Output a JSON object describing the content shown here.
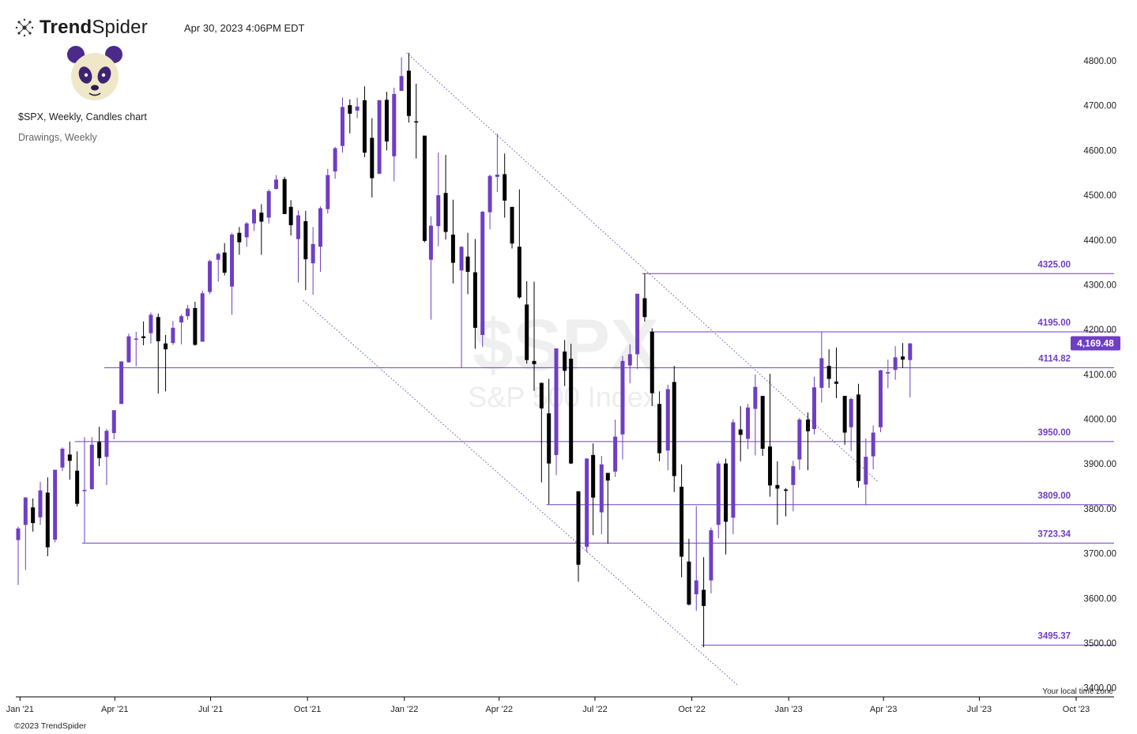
{
  "header": {
    "brand_bold": "Trend",
    "brand_light": "Spider",
    "timestamp": "Apr 30, 2023 4:06PM EDT",
    "chart_symbol": "$SPX, Weekly, Candles chart",
    "drawings_label": "Drawings, Weekly"
  },
  "footer": {
    "copyright": "©2023 TrendSpider",
    "timezone_label": "Your local time zone"
  },
  "watermark": {
    "symbol": "$SPX",
    "name": "S&P 500 Index"
  },
  "colors": {
    "bull": "#6f3ec4",
    "bear": "#000000",
    "level_line": "#6f3ec4",
    "trendline": "#5b5bb5",
    "axis": "#000000"
  },
  "chart_data": {
    "type": "candlestick",
    "symbol": "$SPX",
    "timeframe": "Weekly",
    "ylim": [
      3380,
      4830
    ],
    "xlim": [
      "2020-12-28",
      "2023-11-06"
    ],
    "y_ticks": [
      3400,
      3500,
      3600,
      3700,
      3800,
      3900,
      4000,
      4100,
      4200,
      4300,
      4400,
      4500,
      4600,
      4700,
      4800
    ],
    "x_ticks": [
      {
        "date": "2021-01-01",
        "label": "Jan '21"
      },
      {
        "date": "2021-04-01",
        "label": "Apr '21"
      },
      {
        "date": "2021-07-01",
        "label": "Jul '21"
      },
      {
        "date": "2021-10-01",
        "label": "Oct '21"
      },
      {
        "date": "2022-01-01",
        "label": "Jan '22"
      },
      {
        "date": "2022-04-01",
        "label": "Apr '22"
      },
      {
        "date": "2022-07-01",
        "label": "Jul '22"
      },
      {
        "date": "2022-10-01",
        "label": "Oct '22"
      },
      {
        "date": "2023-01-01",
        "label": "Jan '23"
      },
      {
        "date": "2023-04-01",
        "label": "Apr '23"
      },
      {
        "date": "2023-07-01",
        "label": "Jul '23"
      },
      {
        "date": "2023-10-01",
        "label": "Oct '23"
      }
    ],
    "last_price": {
      "value": 4169.48,
      "label": "4,169.48"
    },
    "levels": [
      {
        "value": 4325.0,
        "label": "4325.00",
        "from": "2022-08-15"
      },
      {
        "value": 4195.0,
        "label": "4195.00",
        "from": "2022-08-22"
      },
      {
        "value": 4114.82,
        "label": "4114.82",
        "from": "2021-03-22"
      },
      {
        "value": 3950.0,
        "label": "3950.00",
        "from": "2021-02-22"
      },
      {
        "value": 3809.0,
        "label": "3809.00",
        "from": "2022-05-16"
      },
      {
        "value": 3723.34,
        "label": "3723.34",
        "from": "2021-03-01"
      },
      {
        "value": 3495.37,
        "label": "3495.37",
        "from": "2022-10-10"
      }
    ],
    "trendlines": [
      {
        "x1": "2022-01-03",
        "y1": 4818,
        "x2": "2023-03-27",
        "y2": 3860
      },
      {
        "x1": "2021-09-27",
        "y1": 4265,
        "x2": "2022-11-14",
        "y2": 3405
      }
    ],
    "candles": [
      {
        "d": "2020-12-28",
        "o": 3730,
        "h": 3760,
        "l": 3630,
        "c": 3756
      },
      {
        "d": "2021-01-04",
        "o": 3764,
        "h": 3826,
        "l": 3663,
        "c": 3825
      },
      {
        "d": "2021-01-11",
        "o": 3803,
        "h": 3823,
        "l": 3749,
        "c": 3768
      },
      {
        "d": "2021-01-18",
        "o": 3781,
        "h": 3860,
        "l": 3764,
        "c": 3841
      },
      {
        "d": "2021-01-25",
        "o": 3836,
        "h": 3870,
        "l": 3694,
        "c": 3714
      },
      {
        "d": "2021-02-01",
        "o": 3731,
        "h": 3887,
        "l": 3725,
        "c": 3887
      },
      {
        "d": "2021-02-08",
        "o": 3892,
        "h": 3937,
        "l": 3884,
        "c": 3934
      },
      {
        "d": "2021-02-15",
        "o": 3921,
        "h": 3950,
        "l": 3865,
        "c": 3907
      },
      {
        "d": "2021-02-22",
        "o": 3885,
        "h": 3928,
        "l": 3805,
        "c": 3811
      },
      {
        "d": "2021-03-01",
        "o": 3842,
        "h": 3960,
        "l": 3723,
        "c": 3842
      },
      {
        "d": "2021-03-08",
        "o": 3844,
        "h": 3960,
        "l": 3842,
        "c": 3943
      },
      {
        "d": "2021-03-15",
        "o": 3949,
        "h": 3983,
        "l": 3895,
        "c": 3913
      },
      {
        "d": "2021-03-22",
        "o": 3916,
        "h": 3978,
        "l": 3853,
        "c": 3974
      },
      {
        "d": "2021-03-29",
        "o": 3969,
        "h": 4020,
        "l": 3955,
        "c": 4020
      },
      {
        "d": "2021-04-05",
        "o": 4034,
        "h": 4129,
        "l": 4034,
        "c": 4129
      },
      {
        "d": "2021-04-12",
        "o": 4127,
        "h": 4191,
        "l": 4126,
        "c": 4185
      },
      {
        "d": "2021-04-19",
        "o": 4179,
        "h": 4195,
        "l": 4118,
        "c": 4180
      },
      {
        "d": "2021-04-26",
        "o": 4185,
        "h": 4218,
        "l": 4165,
        "c": 4181
      },
      {
        "d": "2021-05-03",
        "o": 4192,
        "h": 4238,
        "l": 4169,
        "c": 4233
      },
      {
        "d": "2021-05-10",
        "o": 4228,
        "h": 4236,
        "l": 4057,
        "c": 4174
      },
      {
        "d": "2021-05-17",
        "o": 4169,
        "h": 4188,
        "l": 4062,
        "c": 4156
      },
      {
        "d": "2021-05-24",
        "o": 4170,
        "h": 4219,
        "l": 4166,
        "c": 4204
      },
      {
        "d": "2021-06-01",
        "o": 4216,
        "h": 4234,
        "l": 4167,
        "c": 4230
      },
      {
        "d": "2021-06-07",
        "o": 4230,
        "h": 4255,
        "l": 4222,
        "c": 4247
      },
      {
        "d": "2021-06-14",
        "o": 4248,
        "h": 4262,
        "l": 4164,
        "c": 4166
      },
      {
        "d": "2021-06-21",
        "o": 4173,
        "h": 4287,
        "l": 4173,
        "c": 4281
      },
      {
        "d": "2021-06-28",
        "o": 4284,
        "h": 4356,
        "l": 4279,
        "c": 4353
      },
      {
        "d": "2021-07-06",
        "o": 4356,
        "h": 4372,
        "l": 4307,
        "c": 4369
      },
      {
        "d": "2021-07-12",
        "o": 4372,
        "h": 4393,
        "l": 4321,
        "c": 4327
      },
      {
        "d": "2021-07-19",
        "o": 4296,
        "h": 4416,
        "l": 4233,
        "c": 4412
      },
      {
        "d": "2021-07-26",
        "o": 4416,
        "h": 4429,
        "l": 4367,
        "c": 4395
      },
      {
        "d": "2021-08-02",
        "o": 4406,
        "h": 4440,
        "l": 4385,
        "c": 4437
      },
      {
        "d": "2021-08-09",
        "o": 4437,
        "h": 4470,
        "l": 4420,
        "c": 4468
      },
      {
        "d": "2021-08-16",
        "o": 4461,
        "h": 4480,
        "l": 4367,
        "c": 4441
      },
      {
        "d": "2021-08-23",
        "o": 4450,
        "h": 4513,
        "l": 4437,
        "c": 4509
      },
      {
        "d": "2021-08-30",
        "o": 4514,
        "h": 4545,
        "l": 4513,
        "c": 4535
      },
      {
        "d": "2021-09-07",
        "o": 4536,
        "h": 4541,
        "l": 4458,
        "c": 4458
      },
      {
        "d": "2021-09-13",
        "o": 4474,
        "h": 4489,
        "l": 4410,
        "c": 4433
      },
      {
        "d": "2021-09-20",
        "o": 4402,
        "h": 4466,
        "l": 4305,
        "c": 4455
      },
      {
        "d": "2021-09-27",
        "o": 4442,
        "h": 4465,
        "l": 4288,
        "c": 4357
      },
      {
        "d": "2021-10-04",
        "o": 4348,
        "h": 4429,
        "l": 4278,
        "c": 4391
      },
      {
        "d": "2021-10-11",
        "o": 4385,
        "h": 4475,
        "l": 4329,
        "c": 4471
      },
      {
        "d": "2021-10-18",
        "o": 4469,
        "h": 4559,
        "l": 4459,
        "c": 4545
      },
      {
        "d": "2021-10-25",
        "o": 4553,
        "h": 4608,
        "l": 4537,
        "c": 4605
      },
      {
        "d": "2021-11-01",
        "o": 4610,
        "h": 4718,
        "l": 4595,
        "c": 4697
      },
      {
        "d": "2021-11-08",
        "o": 4701,
        "h": 4714,
        "l": 4638,
        "c": 4682
      },
      {
        "d": "2021-11-15",
        "o": 4689,
        "h": 4718,
        "l": 4672,
        "c": 4698
      },
      {
        "d": "2021-11-22",
        "o": 4712,
        "h": 4743,
        "l": 4585,
        "c": 4595
      },
      {
        "d": "2021-11-29",
        "o": 4628,
        "h": 4672,
        "l": 4495,
        "c": 4538
      },
      {
        "d": "2021-12-06",
        "o": 4548,
        "h": 4713,
        "l": 4547,
        "c": 4712
      },
      {
        "d": "2021-12-13",
        "o": 4713,
        "h": 4731,
        "l": 4600,
        "c": 4620
      },
      {
        "d": "2021-12-20",
        "o": 4587,
        "h": 4740,
        "l": 4531,
        "c": 4726
      },
      {
        "d": "2021-12-27",
        "o": 4733,
        "h": 4808,
        "l": 4733,
        "c": 4766
      },
      {
        "d": "2022-01-03",
        "o": 4778,
        "h": 4818,
        "l": 4662,
        "c": 4677
      },
      {
        "d": "2022-01-10",
        "o": 4665,
        "h": 4749,
        "l": 4582,
        "c": 4663
      },
      {
        "d": "2022-01-18",
        "o": 4633,
        "h": 4632,
        "l": 4395,
        "c": 4398
      },
      {
        "d": "2022-01-24",
        "o": 4356,
        "h": 4453,
        "l": 4222,
        "c": 4432
      },
      {
        "d": "2022-01-31",
        "o": 4431,
        "h": 4595,
        "l": 4386,
        "c": 4500
      },
      {
        "d": "2022-02-07",
        "o": 4505,
        "h": 4590,
        "l": 4401,
        "c": 4418
      },
      {
        "d": "2022-02-14",
        "o": 4412,
        "h": 4490,
        "l": 4303,
        "c": 4349
      },
      {
        "d": "2022-02-22",
        "o": 4332,
        "h": 4386,
        "l": 4114,
        "c": 4385
      },
      {
        "d": "2022-02-28",
        "o": 4363,
        "h": 4416,
        "l": 4279,
        "c": 4329
      },
      {
        "d": "2022-03-07",
        "o": 4328,
        "h": 4402,
        "l": 4157,
        "c": 4204
      },
      {
        "d": "2022-03-14",
        "o": 4188,
        "h": 4465,
        "l": 4161,
        "c": 4463
      },
      {
        "d": "2022-03-21",
        "o": 4462,
        "h": 4546,
        "l": 4424,
        "c": 4543
      },
      {
        "d": "2022-03-28",
        "o": 4541,
        "h": 4637,
        "l": 4507,
        "c": 4546
      },
      {
        "d": "2022-04-04",
        "o": 4547,
        "h": 4593,
        "l": 4450,
        "c": 4488
      },
      {
        "d": "2022-04-11",
        "o": 4474,
        "h": 4471,
        "l": 4381,
        "c": 4392
      },
      {
        "d": "2022-04-18",
        "o": 4385,
        "h": 4513,
        "l": 4269,
        "c": 4272
      },
      {
        "d": "2022-04-25",
        "o": 4256,
        "h": 4308,
        "l": 4124,
        "c": 4132
      },
      {
        "d": "2022-05-02",
        "o": 4130,
        "h": 4307,
        "l": 4063,
        "c": 4123
      },
      {
        "d": "2022-05-09",
        "o": 4081,
        "h": 4082,
        "l": 3859,
        "c": 4024
      },
      {
        "d": "2022-05-16",
        "o": 4013,
        "h": 4090,
        "l": 3810,
        "c": 3901
      },
      {
        "d": "2022-05-23",
        "o": 3920,
        "h": 4158,
        "l": 3875,
        "c": 4158
      },
      {
        "d": "2022-05-31",
        "o": 4151,
        "h": 4177,
        "l": 4074,
        "c": 4108
      },
      {
        "d": "2022-06-06",
        "o": 4135,
        "h": 4168,
        "l": 3900,
        "c": 3901
      },
      {
        "d": "2022-06-13",
        "o": 3839,
        "h": 3839,
        "l": 3637,
        "c": 3675
      },
      {
        "d": "2022-06-21",
        "o": 3715,
        "h": 3913,
        "l": 3703,
        "c": 3912
      },
      {
        "d": "2022-06-27",
        "o": 3920,
        "h": 3946,
        "l": 3741,
        "c": 3825
      },
      {
        "d": "2022-07-05",
        "o": 3792,
        "h": 3918,
        "l": 3743,
        "c": 3899
      },
      {
        "d": "2022-07-11",
        "o": 3880,
        "h": 3880,
        "l": 3722,
        "c": 3863
      },
      {
        "d": "2022-07-18",
        "o": 3883,
        "h": 3999,
        "l": 3871,
        "c": 3961
      },
      {
        "d": "2022-07-25",
        "o": 3966,
        "h": 4141,
        "l": 3910,
        "c": 4130
      },
      {
        "d": "2022-08-01",
        "o": 4120,
        "h": 4167,
        "l": 4080,
        "c": 4145
      },
      {
        "d": "2022-08-08",
        "o": 4145,
        "h": 4280,
        "l": 4112,
        "c": 4280
      },
      {
        "d": "2022-08-15",
        "o": 4270,
        "h": 4325,
        "l": 4218,
        "c": 4228
      },
      {
        "d": "2022-08-22",
        "o": 4195,
        "h": 4203,
        "l": 4029,
        "c": 4058
      },
      {
        "d": "2022-08-29",
        "o": 4034,
        "h": 4062,
        "l": 3906,
        "c": 3924
      },
      {
        "d": "2022-09-06",
        "o": 3930,
        "h": 4077,
        "l": 3886,
        "c": 4067
      },
      {
        "d": "2022-09-12",
        "o": 4083,
        "h": 4119,
        "l": 3837,
        "c": 3873
      },
      {
        "d": "2022-09-19",
        "o": 3849,
        "h": 3899,
        "l": 3647,
        "c": 3693
      },
      {
        "d": "2022-09-26",
        "o": 3682,
        "h": 3733,
        "l": 3584,
        "c": 3586
      },
      {
        "d": "2022-10-03",
        "o": 3609,
        "h": 3806,
        "l": 3572,
        "c": 3640
      },
      {
        "d": "2022-10-10",
        "o": 3619,
        "h": 3692,
        "l": 3491,
        "c": 3583
      },
      {
        "d": "2022-10-17",
        "o": 3640,
        "h": 3758,
        "l": 3611,
        "c": 3752
      },
      {
        "d": "2022-10-24",
        "o": 3764,
        "h": 3906,
        "l": 3734,
        "c": 3901
      },
      {
        "d": "2022-10-31",
        "o": 3901,
        "h": 3912,
        "l": 3698,
        "c": 3771
      },
      {
        "d": "2022-11-07",
        "o": 3780,
        "h": 4000,
        "l": 3743,
        "c": 3993
      },
      {
        "d": "2022-11-14",
        "o": 3977,
        "h": 4029,
        "l": 3906,
        "c": 3965
      },
      {
        "d": "2022-11-21",
        "o": 3956,
        "h": 4034,
        "l": 3933,
        "c": 4026
      },
      {
        "d": "2022-11-28",
        "o": 4023,
        "h": 4100,
        "l": 3919,
        "c": 4072
      },
      {
        "d": "2022-12-05",
        "o": 4052,
        "h": 4052,
        "l": 3918,
        "c": 3934
      },
      {
        "d": "2022-12-12",
        "o": 3939,
        "h": 4101,
        "l": 3827,
        "c": 3852
      },
      {
        "d": "2022-12-19",
        "o": 3853,
        "h": 3906,
        "l": 3764,
        "c": 3845
      },
      {
        "d": "2022-12-27",
        "o": 3843,
        "h": 3846,
        "l": 3783,
        "c": 3840
      },
      {
        "d": "2023-01-03",
        "o": 3853,
        "h": 3907,
        "l": 3794,
        "c": 3895
      },
      {
        "d": "2023-01-09",
        "o": 3910,
        "h": 4003,
        "l": 3887,
        "c": 3999
      },
      {
        "d": "2023-01-17",
        "o": 3999,
        "h": 4015,
        "l": 3886,
        "c": 3973
      },
      {
        "d": "2023-01-23",
        "o": 3978,
        "h": 4095,
        "l": 3966,
        "c": 4071
      },
      {
        "d": "2023-01-30",
        "o": 4070,
        "h": 4195,
        "l": 4037,
        "c": 4136
      },
      {
        "d": "2023-02-06",
        "o": 4119,
        "h": 4156,
        "l": 4070,
        "c": 4090
      },
      {
        "d": "2023-02-13",
        "o": 4084,
        "h": 4160,
        "l": 4047,
        "c": 4079
      },
      {
        "d": "2023-02-21",
        "o": 4052,
        "h": 4052,
        "l": 3943,
        "c": 3970
      },
      {
        "d": "2023-02-27",
        "o": 3982,
        "h": 4048,
        "l": 3929,
        "c": 4045
      },
      {
        "d": "2023-03-06",
        "o": 4055,
        "h": 4079,
        "l": 3847,
        "c": 3862
      },
      {
        "d": "2023-03-13",
        "o": 3854,
        "h": 3957,
        "l": 3808,
        "c": 3916
      },
      {
        "d": "2023-03-20",
        "o": 3917,
        "h": 3986,
        "l": 3888,
        "c": 3970
      },
      {
        "d": "2023-03-27",
        "o": 3982,
        "h": 4110,
        "l": 3971,
        "c": 4109
      },
      {
        "d": "2023-04-03",
        "o": 4102,
        "h": 4133,
        "l": 4069,
        "c": 4105
      },
      {
        "d": "2023-04-10",
        "o": 4110,
        "h": 4163,
        "l": 4088,
        "c": 4138
      },
      {
        "d": "2023-04-17",
        "o": 4140,
        "h": 4170,
        "l": 4114,
        "c": 4133
      },
      {
        "d": "2023-04-24",
        "o": 4132,
        "h": 4170,
        "l": 4049,
        "c": 4169
      }
    ]
  }
}
